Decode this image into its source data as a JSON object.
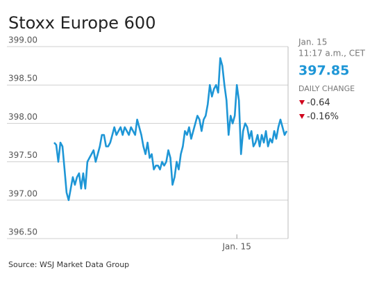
{
  "chart_data": {
    "type": "line",
    "title": "Stoxx Europe 600",
    "source": "Source: WSJ Market Data Group",
    "color": "#1e96d6",
    "values": [
      397.75,
      397.72,
      397.5,
      397.75,
      397.7,
      397.4,
      397.1,
      397.0,
      397.15,
      397.3,
      397.2,
      397.3,
      397.35,
      397.15,
      397.35,
      397.15,
      397.5,
      397.55,
      397.6,
      397.65,
      397.5,
      397.6,
      397.7,
      397.85,
      397.85,
      397.7,
      397.7,
      397.75,
      397.85,
      397.95,
      397.85,
      397.9,
      397.95,
      397.85,
      397.95,
      397.9,
      397.85,
      397.95,
      397.9,
      397.85,
      398.05,
      397.95,
      397.85,
      397.7,
      397.6,
      397.75,
      397.55,
      397.6,
      397.4,
      397.45,
      397.45,
      397.4,
      397.5,
      397.45,
      397.5,
      397.65,
      397.55,
      397.2,
      397.3,
      397.5,
      397.4,
      397.6,
      397.7,
      397.9,
      397.85,
      397.95,
      397.8,
      397.9,
      398.0,
      398.1,
      398.05,
      397.9,
      398.05,
      398.1,
      398.25,
      398.5,
      398.35,
      398.45,
      398.5,
      398.4,
      398.85,
      398.75,
      398.5,
      398.3,
      397.85,
      398.1,
      398.0,
      398.1,
      398.5,
      398.3,
      397.6,
      397.9,
      398.0,
      397.95,
      397.8,
      397.9,
      397.7,
      397.75,
      397.85,
      397.7,
      397.85,
      397.75,
      397.9,
      397.7,
      397.8,
      397.75,
      397.9,
      397.8,
      397.95,
      398.05,
      397.95,
      397.85,
      397.9
    ],
    "xlim": [
      0,
      112
    ],
    "xticks": [
      {
        "value": 88,
        "label": "Jan. 15"
      }
    ],
    "ylim": [
      396.5,
      399.0
    ],
    "yticks": [
      {
        "value": 396.5,
        "label": "396.50"
      },
      {
        "value": 397,
        "label": "397.00"
      },
      {
        "value": 397.5,
        "label": "397.50"
      },
      {
        "value": 398,
        "label": "398.00"
      },
      {
        "value": 398.5,
        "label": "398.50"
      },
      {
        "value": 399,
        "label": "399.00"
      }
    ],
    "grid": true,
    "info": {
      "date": "Jan. 15",
      "time": "11:17 a.m., CET",
      "price": 397.85,
      "change_title": "DAILY CHANGE",
      "change": -0.64,
      "change_pct": {
        "value": -0.16,
        "label": "-0.16%"
      }
    }
  }
}
